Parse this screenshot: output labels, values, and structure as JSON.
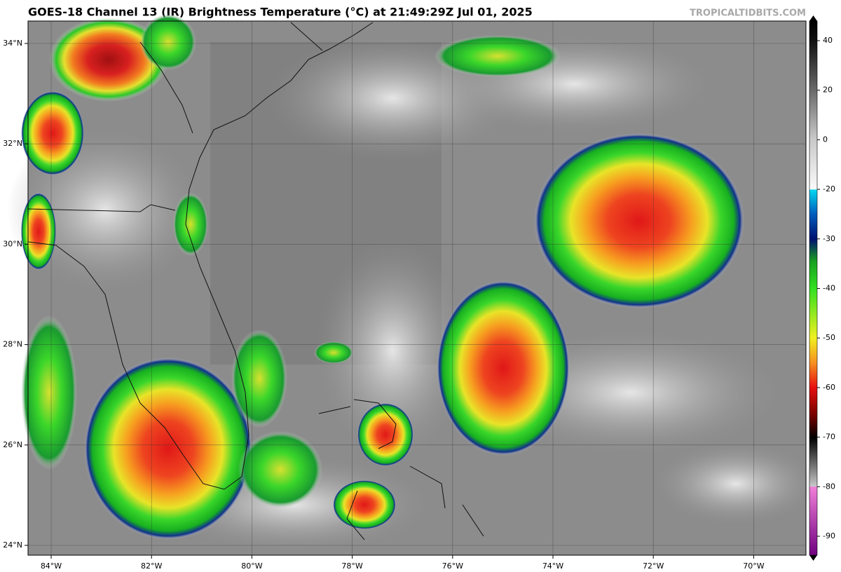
{
  "header": {
    "title": "GOES-18 Channel 13 (IR) Brightness Temperature (°C) at 21:49:29Z Jul 01, 2025",
    "watermark": "TROPICALTIDBITS.COM"
  },
  "map": {
    "lon_ticks": [
      "84°W",
      "82°W",
      "80°W",
      "78°W",
      "76°W",
      "74°W",
      "72°W",
      "70°W"
    ],
    "lat_ticks": [
      "34°N",
      "32°N",
      "30°N",
      "28°N",
      "26°N",
      "24°N"
    ]
  },
  "colorbar": {
    "ticks": [
      40,
      20,
      0,
      -20,
      -30,
      -40,
      -50,
      -60,
      -70,
      -80,
      -90
    ]
  }
}
